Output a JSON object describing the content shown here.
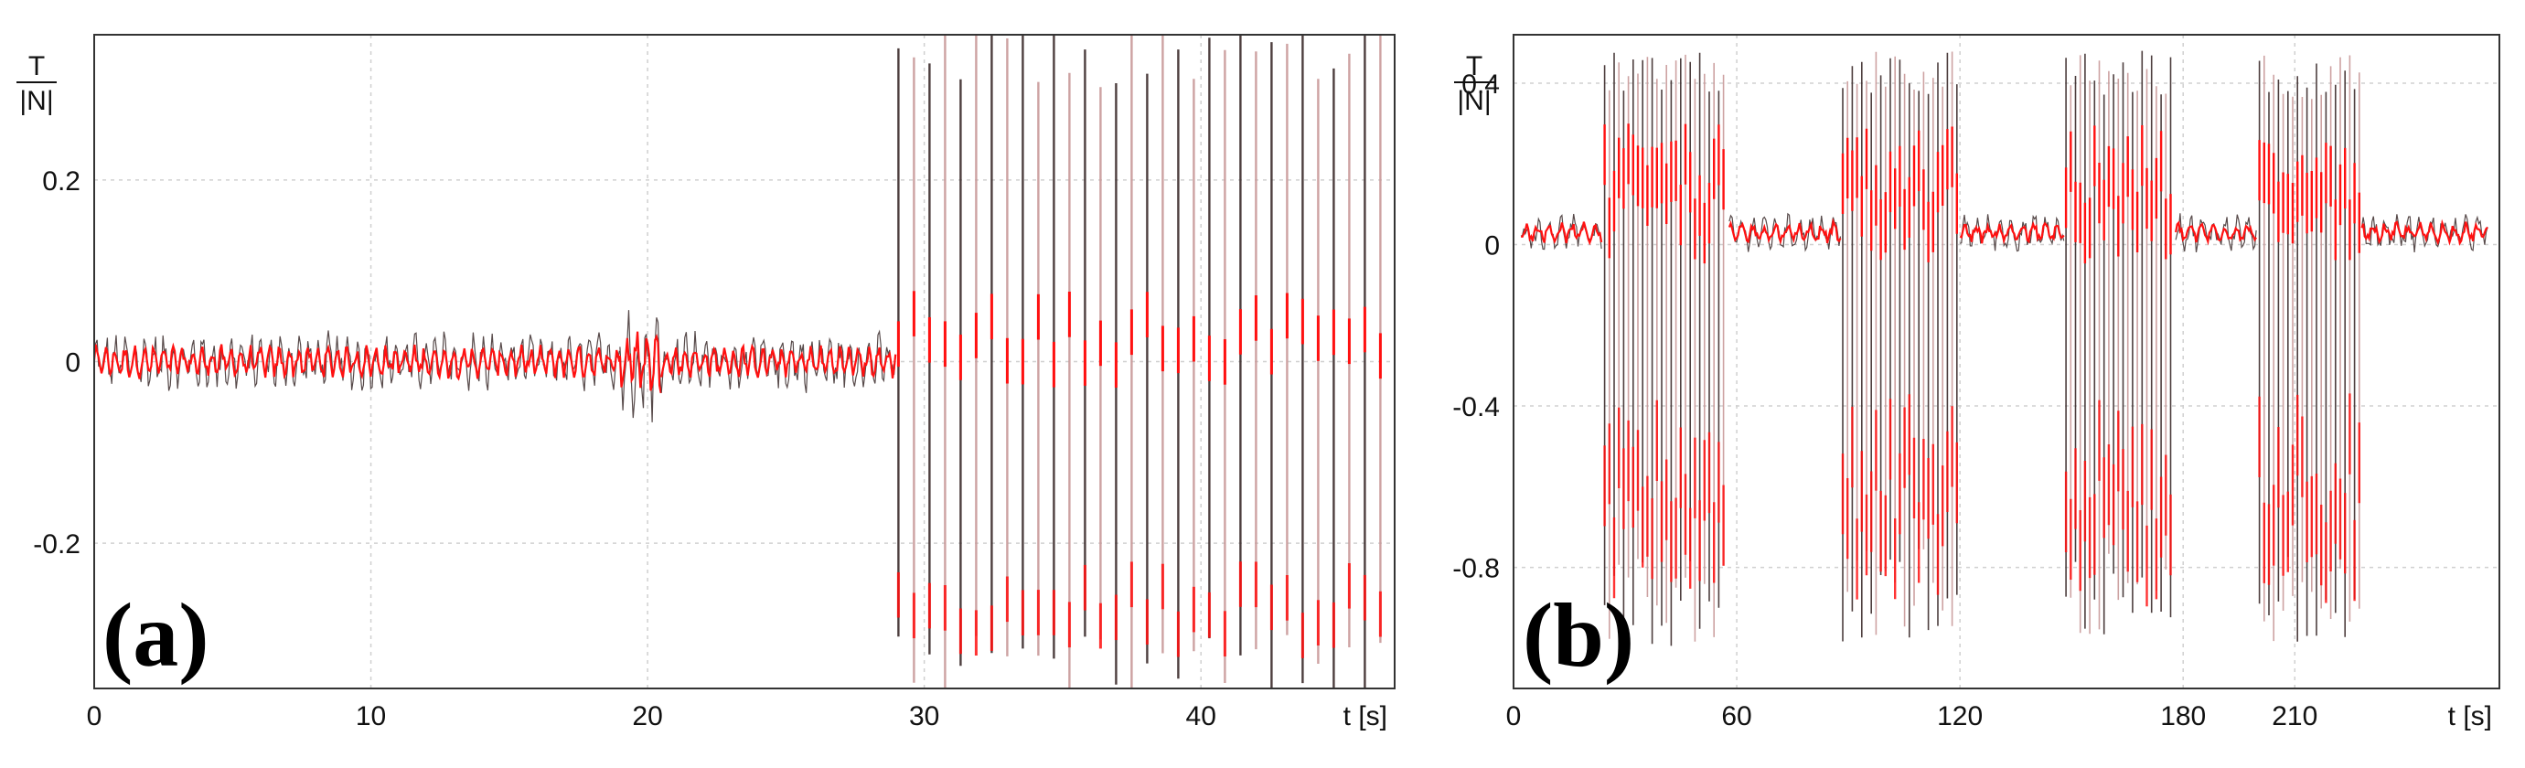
{
  "chart_data": [
    {
      "type": "line",
      "panel_label": "(a)",
      "ylabel_num": "T",
      "ylabel_den": "|N|",
      "xlabel": "t [s]",
      "xlim": [
        0,
        47
      ],
      "ylim": [
        -0.36,
        0.36
      ],
      "xticks": [
        0,
        10,
        20,
        30,
        40
      ],
      "yticks": [
        -0.2,
        0,
        0.2
      ],
      "xtick_labels": [
        "0",
        "10",
        "20",
        "30",
        "40"
      ],
      "ytick_labels": [
        "-0.2",
        "0",
        "0.2"
      ],
      "grid": true,
      "colors": {
        "dark": "#3a2a2a",
        "light": "#c89898",
        "accent": "#ff1010"
      },
      "series": [
        {
          "segments": [
            {
              "t_start": 0,
              "t_end": 19,
              "regime": "stick",
              "center": 0.0,
              "amplitude": 0.035
            },
            {
              "t_start": 19,
              "t_end": 20.5,
              "regime": "transient",
              "center": 0.0,
              "amplitude": 0.07
            },
            {
              "t_start": 20.5,
              "t_end": 29,
              "regime": "stick",
              "center": 0.0,
              "amplitude": 0.035
            },
            {
              "t_start": 29,
              "t_end": 46.8,
              "regime": "stick-slip",
              "center": 0.0,
              "amplitude": 0.36
            }
          ]
        }
      ]
    },
    {
      "type": "line",
      "panel_label": "(b)",
      "ylabel_num": "T",
      "ylabel_den": "|N|",
      "xlabel": "t [s]",
      "xlim": [
        0,
        265
      ],
      "ylim": [
        -1.1,
        0.52
      ],
      "xticks": [
        0,
        60,
        120,
        180,
        210
      ],
      "yticks": [
        -0.8,
        -0.4,
        0,
        0.4
      ],
      "xtick_labels": [
        "0",
        "60",
        "120",
        "180",
        "210"
      ],
      "ytick_labels": [
        "-0.8",
        "-0.4",
        "0",
        "0.4"
      ],
      "grid": true,
      "colors": {
        "dark": "#3a2a2a",
        "light": "#c89898",
        "accent": "#ff1010"
      },
      "series": [
        {
          "segments": [
            {
              "t_start": 2,
              "t_end": 24,
              "regime": "stick",
              "center": 0.03,
              "amplitude": 0.05
            },
            {
              "t_start": 24,
              "t_end": 58,
              "regime": "stick-slip",
              "center": 0.0,
              "top": 0.45,
              "bottom": -0.95
            },
            {
              "t_start": 58,
              "t_end": 88,
              "regime": "stick",
              "center": 0.03,
              "amplitude": 0.05
            },
            {
              "t_start": 88,
              "t_end": 120,
              "regime": "stick-slip",
              "center": 0.0,
              "top": 0.45,
              "bottom": -0.92
            },
            {
              "t_start": 120,
              "t_end": 148,
              "regime": "stick",
              "center": 0.03,
              "amplitude": 0.05
            },
            {
              "t_start": 148,
              "t_end": 178,
              "regime": "stick-slip",
              "center": 0.0,
              "top": 0.45,
              "bottom": -0.93
            },
            {
              "t_start": 178,
              "t_end": 200,
              "regime": "stick",
              "center": 0.03,
              "amplitude": 0.05
            },
            {
              "t_start": 200,
              "t_end": 228,
              "regime": "stick-slip",
              "center": 0.0,
              "top": 0.44,
              "bottom": -0.92
            },
            {
              "t_start": 228,
              "t_end": 262,
              "regime": "stick",
              "center": 0.03,
              "amplitude": 0.05
            }
          ]
        }
      ]
    }
  ]
}
